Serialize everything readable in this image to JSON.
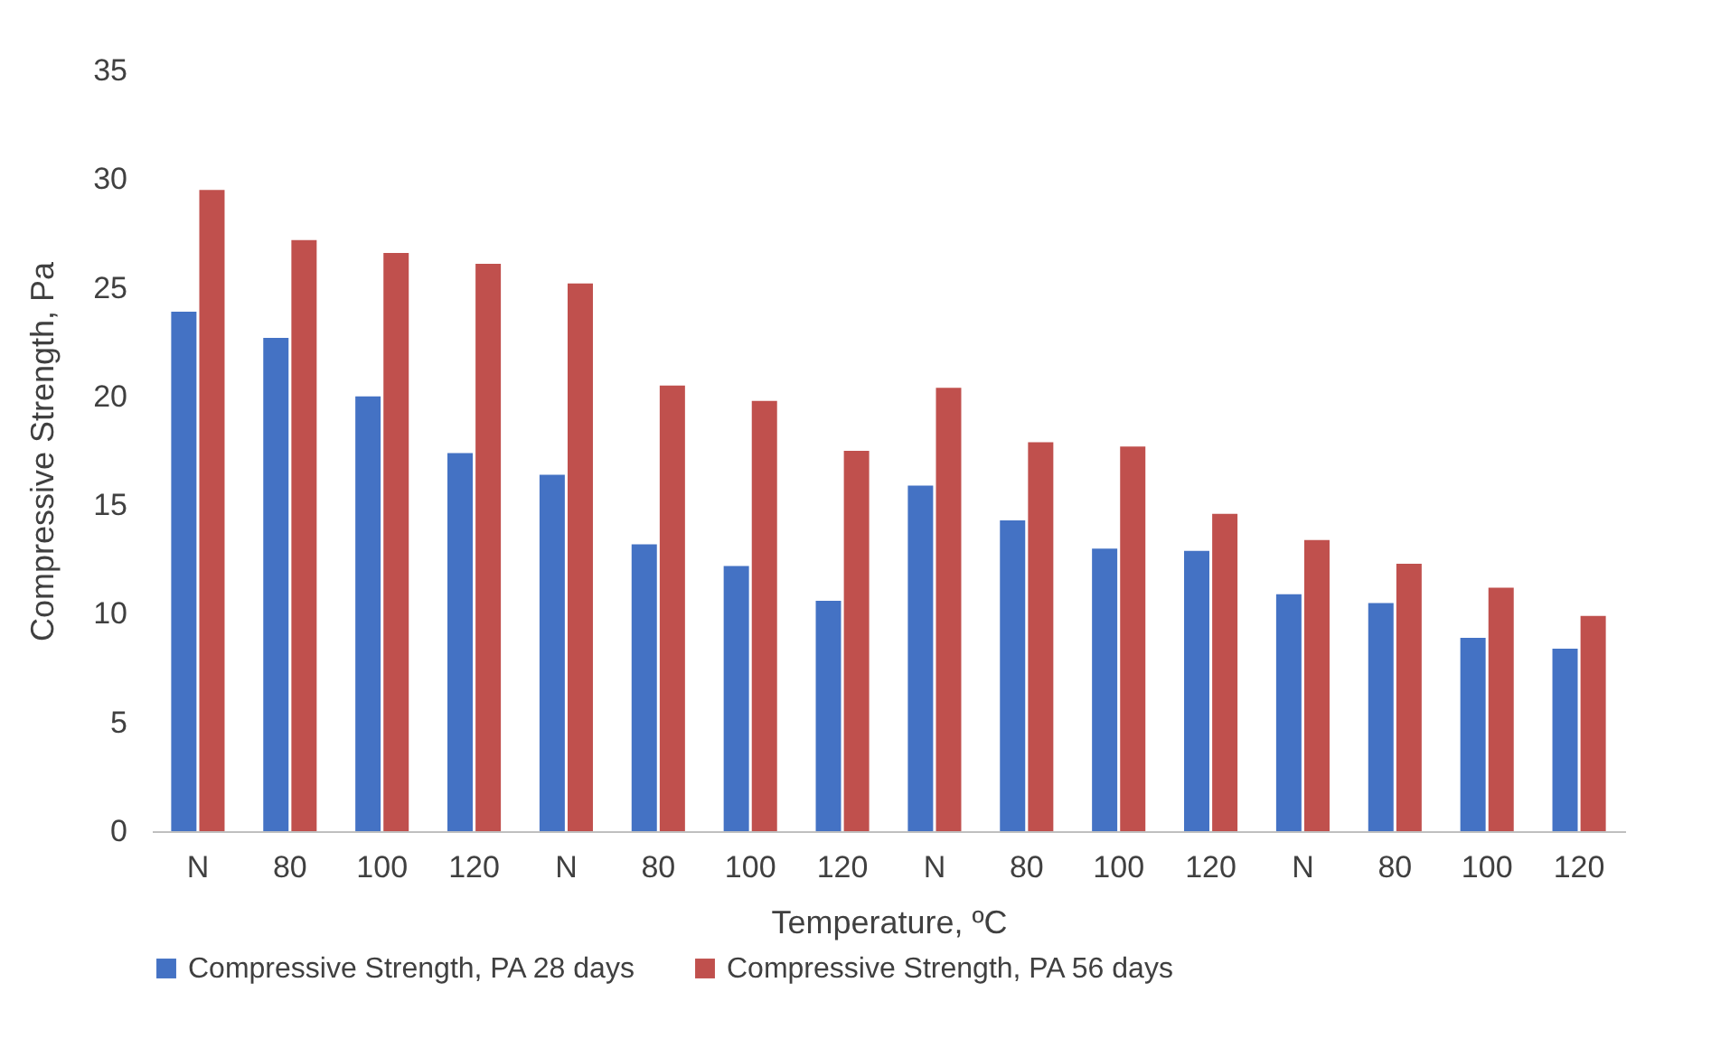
{
  "chart_data": {
    "type": "bar",
    "xlabel": "Temperature, ºC",
    "ylabel": "Compressive Strength, Pa",
    "categories": [
      "N",
      "80",
      "100",
      "120",
      "N",
      "80",
      "100",
      "120",
      "N",
      "80",
      "100",
      "120",
      "N",
      "80",
      "100",
      "120"
    ],
    "series": [
      {
        "name": "Compressive Strength, PA 28 days",
        "color": "#4472c4",
        "values": [
          23.9,
          22.7,
          20.0,
          17.4,
          16.4,
          13.2,
          12.2,
          10.6,
          15.9,
          14.3,
          13.0,
          12.9,
          10.9,
          10.5,
          8.9,
          8.4
        ]
      },
      {
        "name": "Compressive Strength, PA 56 days",
        "color": "#c0504d",
        "values": [
          29.5,
          27.2,
          26.6,
          26.1,
          25.2,
          20.5,
          19.8,
          17.5,
          20.4,
          17.9,
          17.7,
          14.6,
          13.4,
          12.3,
          11.2,
          9.9
        ]
      }
    ],
    "ylim": [
      0,
      35
    ],
    "yticks": [
      0,
      5,
      10,
      15,
      20,
      25,
      30,
      35
    ],
    "grid": false,
    "legend": "bottom"
  }
}
